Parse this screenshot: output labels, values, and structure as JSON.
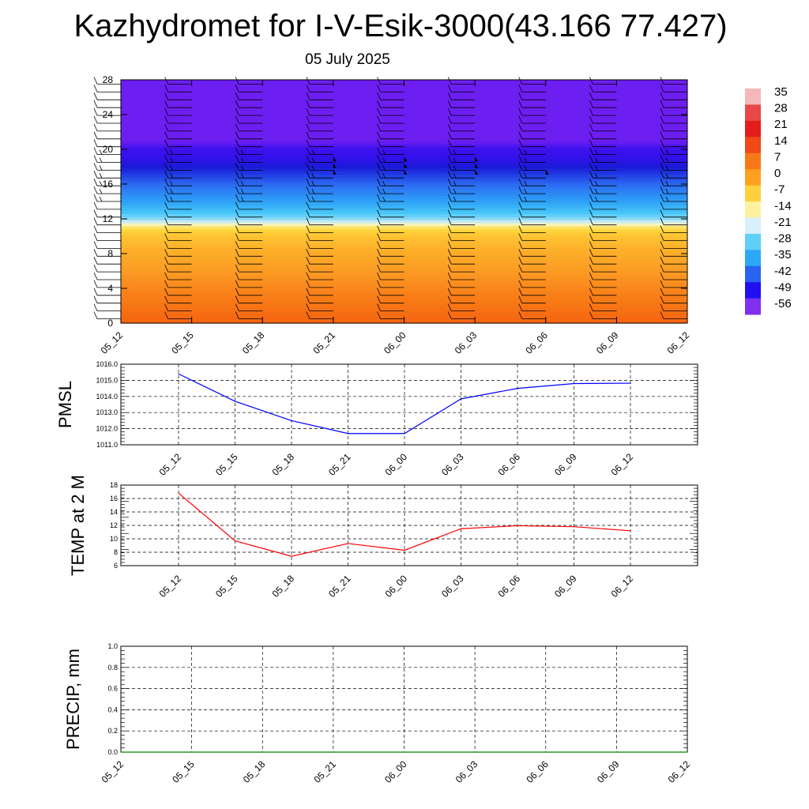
{
  "title": "Kazhydromet for I-V-Esik-3000(43.166 77.427)",
  "subtitle": "05 July 2025",
  "time_labels": [
    "05_12",
    "05_15",
    "05_18",
    "05_21",
    "06_00",
    "06_03",
    "06_06",
    "06_09",
    "06_12"
  ],
  "colorbar": {
    "labels": [
      "35",
      "28",
      "21",
      "14",
      "7",
      "0",
      "-7",
      "-14",
      "-21",
      "-28",
      "-35",
      "-42",
      "-49",
      "-56"
    ],
    "colors": [
      "#f4b8b8",
      "#e84848",
      "#e41c1c",
      "#f04818",
      "#f87818",
      "#fca020",
      "#fed040",
      "#fff0a0",
      "#d8f0fc",
      "#60d0f8",
      "#2ca8f4",
      "#2864f0",
      "#2010f0",
      "#8030f0"
    ]
  },
  "chart_data": [
    {
      "type": "heatmap",
      "name": "temperature-wind-cross-section",
      "y_ticks": [
        "0",
        "4",
        "8",
        "12",
        "16",
        "20",
        "24",
        "28"
      ],
      "ylim": [
        0,
        28
      ],
      "x": [
        "05_12",
        "05_15",
        "05_18",
        "05_21",
        "06_00",
        "06_03",
        "06_06",
        "06_09",
        "06_12"
      ],
      "zlim": [
        -60,
        35
      ],
      "grid": false
    },
    {
      "type": "line",
      "name": "pmsl",
      "ylabel": "PMSL",
      "x": [
        "05_12",
        "05_15",
        "05_18",
        "05_21",
        "06_00",
        "06_03",
        "06_06",
        "06_09",
        "06_12"
      ],
      "values": [
        1015.4,
        1013.7,
        1012.5,
        1011.7,
        1011.7,
        1013.85,
        1014.5,
        1014.8,
        1014.82
      ],
      "ylim": [
        1011.0,
        1016.0
      ],
      "y_ticks": [
        "1011.0",
        "1012.0",
        "1013.0",
        "1014.0",
        "1015.0",
        "1016.0"
      ],
      "color": "#0000ff",
      "grid": true
    },
    {
      "type": "line",
      "name": "temp2m",
      "ylabel": "TEMP at 2 M",
      "x": [
        "05_12",
        "05_15",
        "05_18",
        "05_21",
        "06_00",
        "06_03",
        "06_06",
        "06_09",
        "06_12"
      ],
      "values": [
        16.8,
        9.7,
        7.4,
        9.3,
        8.3,
        11.5,
        11.95,
        11.8,
        11.2
      ],
      "ylim": [
        6,
        18
      ],
      "y_ticks": [
        "6",
        "8",
        "10",
        "12",
        "14",
        "16",
        "18"
      ],
      "color": "#ff0000",
      "grid": true
    },
    {
      "type": "line",
      "name": "precip",
      "ylabel": "PRECIP, mm",
      "x": [
        "05_12",
        "05_15",
        "05_18",
        "05_21",
        "06_00",
        "06_03",
        "06_06",
        "06_09",
        "06_12"
      ],
      "values": [
        0,
        0,
        0,
        0,
        0,
        0,
        0,
        0,
        0
      ],
      "ylim": [
        0.0,
        1.0
      ],
      "y_ticks": [
        "0.0",
        "0.2",
        "0.4",
        "0.6",
        "0.8",
        "1.0"
      ],
      "color": "#008000",
      "grid": true
    }
  ]
}
